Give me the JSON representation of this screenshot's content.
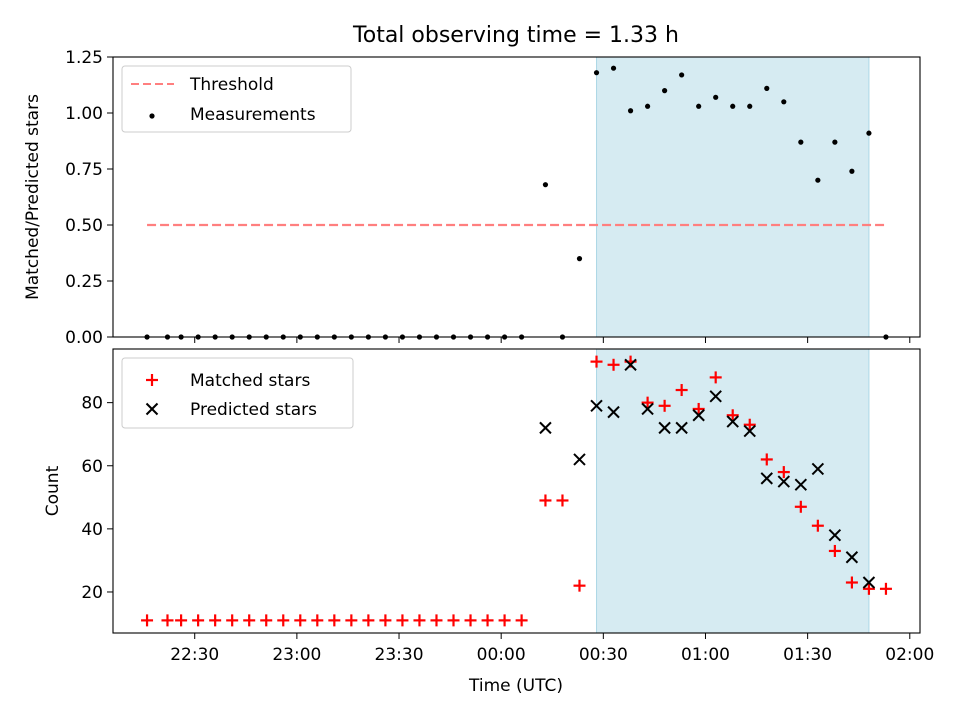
{
  "title": "Total observing time = 1.33 h",
  "shade_color": "#add8e6",
  "chart_data": [
    {
      "type": "scatter",
      "ylabel": "Matched/Predicted stars",
      "ylim": [
        0,
        1.25
      ],
      "yticks": [
        0.0,
        0.25,
        0.5,
        0.75,
        1.0,
        1.25
      ],
      "ytick_labels": [
        "0.00",
        "0.25",
        "0.50",
        "0.75",
        "1.00",
        "1.25"
      ],
      "xlim": [
        "22:06",
        "02:03"
      ],
      "xticks": [
        "22:30",
        "23:00",
        "23:30",
        "00:00",
        "00:30",
        "01:00",
        "01:30",
        "02:00"
      ],
      "shaded_span": [
        "00:28",
        "01:48"
      ],
      "legend_position": "top-left",
      "legend": [
        {
          "label": "Threshold",
          "marker": "dashed-line",
          "color": "#ff7f7f"
        },
        {
          "label": "Measurements",
          "marker": "dot",
          "color": "#000000"
        }
      ],
      "threshold": {
        "value": 0.5,
        "x_start": "22:16",
        "x_end": "01:53",
        "color": "#ff7f7f"
      },
      "series": [
        {
          "name": "Measurements",
          "color": "#000000",
          "points": [
            [
              "22:16",
              0
            ],
            [
              "22:22",
              0
            ],
            [
              "22:26",
              0
            ],
            [
              "22:31",
              0
            ],
            [
              "22:36",
              0
            ],
            [
              "22:41",
              0
            ],
            [
              "22:46",
              0
            ],
            [
              "22:51",
              0
            ],
            [
              "22:56",
              0
            ],
            [
              "23:01",
              0
            ],
            [
              "23:06",
              0
            ],
            [
              "23:11",
              0
            ],
            [
              "23:16",
              0
            ],
            [
              "23:21",
              0
            ],
            [
              "23:26",
              0
            ],
            [
              "23:31",
              0
            ],
            [
              "23:36",
              0
            ],
            [
              "23:41",
              0
            ],
            [
              "23:46",
              0
            ],
            [
              "23:51",
              0
            ],
            [
              "23:56",
              0
            ],
            [
              "00:01",
              0
            ],
            [
              "00:06",
              0
            ],
            [
              "00:13",
              0.68
            ],
            [
              "00:18",
              0
            ],
            [
              "00:23",
              0.35
            ],
            [
              "00:28",
              1.18
            ],
            [
              "00:33",
              1.2
            ],
            [
              "00:38",
              1.01
            ],
            [
              "00:43",
              1.03
            ],
            [
              "00:48",
              1.1
            ],
            [
              "00:53",
              1.17
            ],
            [
              "00:58",
              1.03
            ],
            [
              "01:03",
              1.07
            ],
            [
              "01:08",
              1.03
            ],
            [
              "01:13",
              1.03
            ],
            [
              "01:18",
              1.11
            ],
            [
              "01:23",
              1.05
            ],
            [
              "01:28",
              0.87
            ],
            [
              "01:33",
              0.7
            ],
            [
              "01:38",
              0.87
            ],
            [
              "01:43",
              0.74
            ],
            [
              "01:48",
              0.91
            ],
            [
              "01:53",
              0
            ]
          ]
        }
      ]
    },
    {
      "type": "scatter",
      "ylabel": "Count",
      "xlabel": "Time (UTC)",
      "ylim": [
        7,
        97
      ],
      "yticks": [
        20,
        40,
        60,
        80
      ],
      "ytick_labels": [
        "20",
        "40",
        "60",
        "80"
      ],
      "xlim": [
        "22:06",
        "02:03"
      ],
      "xticks": [
        "22:30",
        "23:00",
        "23:30",
        "00:00",
        "00:30",
        "01:00",
        "01:30",
        "02:00"
      ],
      "xtick_labels": [
        "22:30",
        "23:00",
        "23:30",
        "00:00",
        "00:30",
        "01:00",
        "01:30",
        "02:00"
      ],
      "shaded_span": [
        "00:28",
        "01:48"
      ],
      "legend_position": "top-left",
      "legend": [
        {
          "label": "Matched stars",
          "marker": "plus",
          "color": "#ff0000"
        },
        {
          "label": "Predicted stars",
          "marker": "x",
          "color": "#000000"
        }
      ],
      "series": [
        {
          "name": "Matched stars",
          "color": "#ff0000",
          "marker": "plus",
          "points": [
            [
              "22:16",
              11
            ],
            [
              "22:22",
              11
            ],
            [
              "22:26",
              11
            ],
            [
              "22:31",
              11
            ],
            [
              "22:36",
              11
            ],
            [
              "22:41",
              11
            ],
            [
              "22:46",
              11
            ],
            [
              "22:51",
              11
            ],
            [
              "22:56",
              11
            ],
            [
              "23:01",
              11
            ],
            [
              "23:06",
              11
            ],
            [
              "23:11",
              11
            ],
            [
              "23:16",
              11
            ],
            [
              "23:21",
              11
            ],
            [
              "23:26",
              11
            ],
            [
              "23:31",
              11
            ],
            [
              "23:36",
              11
            ],
            [
              "23:41",
              11
            ],
            [
              "23:46",
              11
            ],
            [
              "23:51",
              11
            ],
            [
              "23:56",
              11
            ],
            [
              "00:01",
              11
            ],
            [
              "00:06",
              11
            ],
            [
              "00:13",
              49
            ],
            [
              "00:18",
              49
            ],
            [
              "00:23",
              22
            ],
            [
              "00:28",
              93
            ],
            [
              "00:33",
              92
            ],
            [
              "00:38",
              93
            ],
            [
              "00:43",
              80
            ],
            [
              "00:48",
              79
            ],
            [
              "00:53",
              84
            ],
            [
              "00:58",
              78
            ],
            [
              "01:03",
              88
            ],
            [
              "01:08",
              76
            ],
            [
              "01:13",
              73
            ],
            [
              "01:18",
              62
            ],
            [
              "01:23",
              58
            ],
            [
              "01:28",
              47
            ],
            [
              "01:33",
              41
            ],
            [
              "01:38",
              33
            ],
            [
              "01:43",
              23
            ],
            [
              "01:48",
              21
            ],
            [
              "01:53",
              21
            ]
          ]
        },
        {
          "name": "Predicted stars",
          "color": "#000000",
          "marker": "x",
          "points": [
            [
              "00:13",
              72
            ],
            [
              "00:23",
              62
            ],
            [
              "00:28",
              79
            ],
            [
              "00:33",
              77
            ],
            [
              "00:38",
              92
            ],
            [
              "00:43",
              78
            ],
            [
              "00:48",
              72
            ],
            [
              "00:53",
              72
            ],
            [
              "00:58",
              76
            ],
            [
              "01:03",
              82
            ],
            [
              "01:08",
              74
            ],
            [
              "01:13",
              71
            ],
            [
              "01:18",
              56
            ],
            [
              "01:23",
              55
            ],
            [
              "01:28",
              54
            ],
            [
              "01:33",
              59
            ],
            [
              "01:38",
              38
            ],
            [
              "01:43",
              31
            ],
            [
              "01:48",
              23
            ]
          ]
        }
      ]
    }
  ]
}
